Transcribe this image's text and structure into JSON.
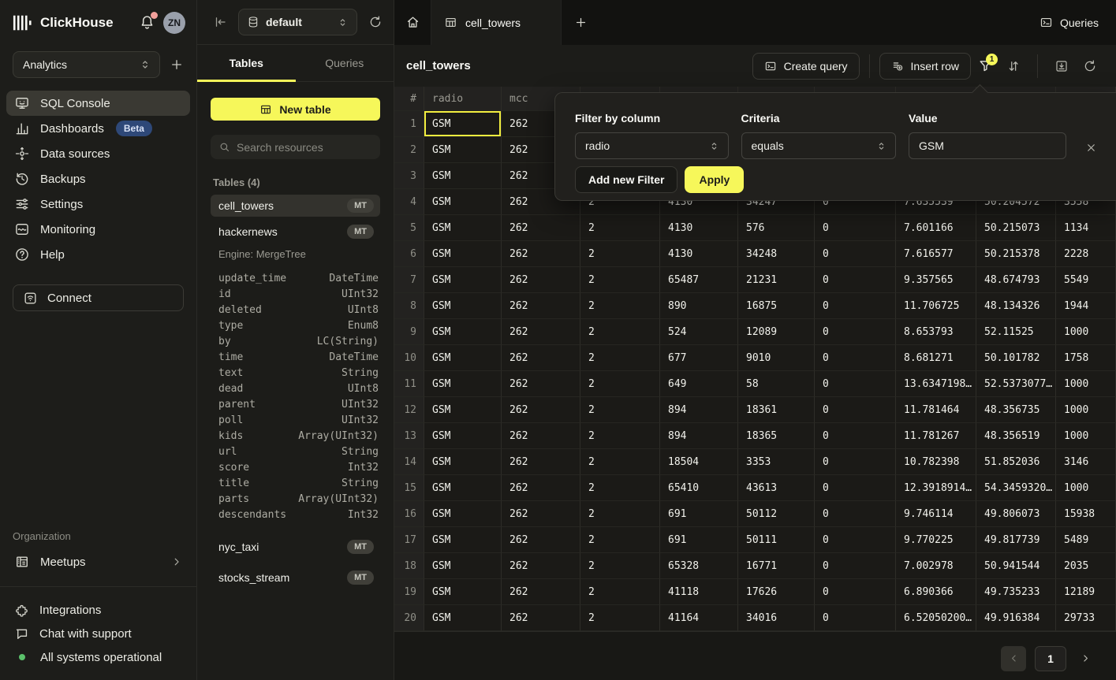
{
  "colors": {
    "accent_yellow": "#f6f75a",
    "beta_blue": "#2e4878",
    "status_green": "#5bc16b",
    "alert_red": "#f2a09b",
    "selection_yellow": "#f2ee3f"
  },
  "sidebar": {
    "brand": "ClickHouse",
    "avatar_initials": "ZN",
    "workspace": {
      "selected": "Analytics"
    },
    "nav": [
      {
        "label": "SQL Console",
        "active": true
      },
      {
        "label": "Dashboards",
        "badge": "Beta"
      },
      {
        "label": "Data sources"
      },
      {
        "label": "Backups"
      },
      {
        "label": "Settings"
      },
      {
        "label": "Monitoring"
      },
      {
        "label": "Help"
      }
    ],
    "connect_label": "Connect",
    "organization": {
      "title": "Organization",
      "items": [
        {
          "label": "Meetups"
        }
      ]
    },
    "footer": [
      {
        "label": "Integrations"
      },
      {
        "label": "Chat with support"
      },
      {
        "label": "All systems operational"
      }
    ]
  },
  "explorer": {
    "database": "default",
    "tabs": [
      {
        "label": "Tables",
        "active": true
      },
      {
        "label": "Queries",
        "active": false
      }
    ],
    "new_table_label": "New table",
    "search_placeholder": "Search resources",
    "section_title": "Tables (4)",
    "table_cell_towers": {
      "name": "cell_towers",
      "badge": "MT"
    },
    "table_hackernews": {
      "name": "hackernews",
      "badge": "MT",
      "engine": "Engine: MergeTree"
    },
    "table_nyc_taxi": {
      "name": "nyc_taxi",
      "badge": "MT"
    },
    "table_stocks_stream": {
      "name": "stocks_stream",
      "badge": "MT"
    },
    "hackernews_schema": [
      {
        "field": "update_time",
        "type": "DateTime"
      },
      {
        "field": "id",
        "type": "UInt32"
      },
      {
        "field": "deleted",
        "type": "UInt8"
      },
      {
        "field": "type",
        "type": "Enum8"
      },
      {
        "field": "by",
        "type": "LC(String)"
      },
      {
        "field": "time",
        "type": "DateTime"
      },
      {
        "field": "text",
        "type": "String"
      },
      {
        "field": "dead",
        "type": "UInt8"
      },
      {
        "field": "parent",
        "type": "UInt32"
      },
      {
        "field": "poll",
        "type": "UInt32"
      },
      {
        "field": "kids",
        "type": "Array(UInt32)"
      },
      {
        "field": "url",
        "type": "String"
      },
      {
        "field": "score",
        "type": "Int32"
      },
      {
        "field": "title",
        "type": "String"
      },
      {
        "field": "parts",
        "type": "Array(UInt32)"
      },
      {
        "field": "descendants",
        "type": "Int32"
      }
    ]
  },
  "main": {
    "active_tab": "cell_towers",
    "queries_button": "Queries",
    "toolbar": {
      "title": "cell_towers",
      "create_query": "Create query",
      "insert_row": "Insert row",
      "filter_badge": "1"
    },
    "filter_popover": {
      "column_label": "Filter by column",
      "column_value": "radio",
      "criteria_label": "Criteria",
      "criteria_value": "equals",
      "value_label": "Value",
      "value": "GSM",
      "add_filter": "Add new Filter",
      "apply": "Apply"
    },
    "table": {
      "columns": [
        "#",
        "radio",
        "mcc",
        "",
        "",
        "",
        "",
        "",
        "",
        ""
      ],
      "selected_cell": {
        "row": 0,
        "col": 1
      },
      "rows": [
        {
          "n": "1",
          "cells": [
            "GSM",
            "262",
            "",
            "",
            "",
            "",
            "",
            "",
            ""
          ]
        },
        {
          "n": "2",
          "cells": [
            "GSM",
            "262",
            "",
            "",
            "",
            "",
            "",
            "",
            ""
          ]
        },
        {
          "n": "3",
          "cells": [
            "GSM",
            "262",
            "",
            "",
            "",
            "",
            "",
            "",
            ""
          ]
        },
        {
          "n": "4",
          "cells": [
            "GSM",
            "262",
            "2",
            "4130",
            "34247",
            "0",
            "7.635539",
            "50.204572",
            "3558"
          ]
        },
        {
          "n": "5",
          "cells": [
            "GSM",
            "262",
            "2",
            "4130",
            "576",
            "0",
            "7.601166",
            "50.215073",
            "1134"
          ]
        },
        {
          "n": "6",
          "cells": [
            "GSM",
            "262",
            "2",
            "4130",
            "34248",
            "0",
            "7.616577",
            "50.215378",
            "2228"
          ]
        },
        {
          "n": "7",
          "cells": [
            "GSM",
            "262",
            "2",
            "65487",
            "21231",
            "0",
            "9.357565",
            "48.674793",
            "5549"
          ]
        },
        {
          "n": "8",
          "cells": [
            "GSM",
            "262",
            "2",
            "890",
            "16875",
            "0",
            "11.706725",
            "48.134326",
            "1944"
          ]
        },
        {
          "n": "9",
          "cells": [
            "GSM",
            "262",
            "2",
            "524",
            "12089",
            "0",
            "8.653793",
            "52.11525",
            "1000"
          ]
        },
        {
          "n": "10",
          "cells": [
            "GSM",
            "262",
            "2",
            "677",
            "9010",
            "0",
            "8.681271",
            "50.101782",
            "1758"
          ]
        },
        {
          "n": "11",
          "cells": [
            "GSM",
            "262",
            "2",
            "649",
            "58",
            "0",
            "13.6347198…",
            "52.5373077…",
            "1000"
          ]
        },
        {
          "n": "12",
          "cells": [
            "GSM",
            "262",
            "2",
            "894",
            "18361",
            "0",
            "11.781464",
            "48.356735",
            "1000"
          ]
        },
        {
          "n": "13",
          "cells": [
            "GSM",
            "262",
            "2",
            "894",
            "18365",
            "0",
            "11.781267",
            "48.356519",
            "1000"
          ]
        },
        {
          "n": "14",
          "cells": [
            "GSM",
            "262",
            "2",
            "18504",
            "3353",
            "0",
            "10.782398",
            "51.852036",
            "3146"
          ]
        },
        {
          "n": "15",
          "cells": [
            "GSM",
            "262",
            "2",
            "65410",
            "43613",
            "0",
            "12.3918914…",
            "54.3459320…",
            "1000"
          ]
        },
        {
          "n": "16",
          "cells": [
            "GSM",
            "262",
            "2",
            "691",
            "50112",
            "0",
            "9.746114",
            "49.806073",
            "15938"
          ]
        },
        {
          "n": "17",
          "cells": [
            "GSM",
            "262",
            "2",
            "691",
            "50111",
            "0",
            "9.770225",
            "49.817739",
            "5489"
          ]
        },
        {
          "n": "18",
          "cells": [
            "GSM",
            "262",
            "2",
            "65328",
            "16771",
            "0",
            "7.002978",
            "50.941544",
            "2035"
          ]
        },
        {
          "n": "19",
          "cells": [
            "GSM",
            "262",
            "2",
            "41118",
            "17626",
            "0",
            "6.890366",
            "49.735233",
            "12189"
          ]
        },
        {
          "n": "20",
          "cells": [
            "GSM",
            "262",
            "2",
            "41164",
            "34016",
            "0",
            "6.52050200…",
            "49.916384",
            "29733"
          ]
        }
      ]
    },
    "pagination": {
      "page": "1"
    }
  }
}
